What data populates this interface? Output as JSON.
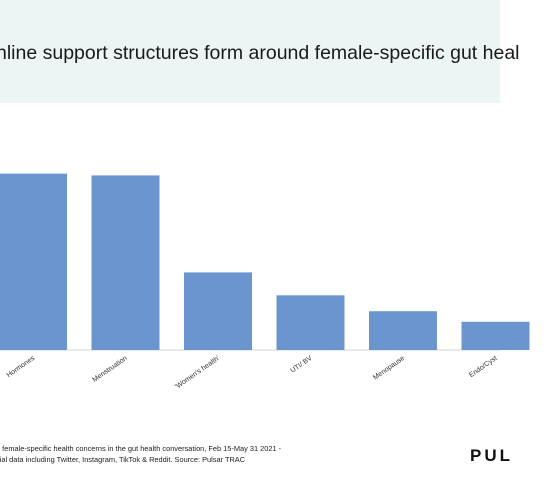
{
  "title": "nline support structures form around female-specific gut heal",
  "footnote": {
    "line1": "d female-specific health concerns in  the gut health conversation, Feb 15-May 31 2021 -",
    "line2": "cial data including Twitter, Instagram, TikTok & Reddit. Source: Pulsar TRAC"
  },
  "logo": "PUL",
  "colors": {
    "bar": "#6a95cf",
    "header_band": "#ecf4f6"
  },
  "chart_data": {
    "type": "bar",
    "categories": [
      "Hormones",
      "Menstruation",
      "'Women's health'",
      "UTI/ BV",
      "Menopause",
      "Endo/Cyst"
    ],
    "values": [
      100,
      99,
      44,
      31,
      22,
      16
    ],
    "title": "",
    "xlabel": "",
    "ylabel": "",
    "ylim": [
      0,
      110
    ],
    "grid": false
  }
}
